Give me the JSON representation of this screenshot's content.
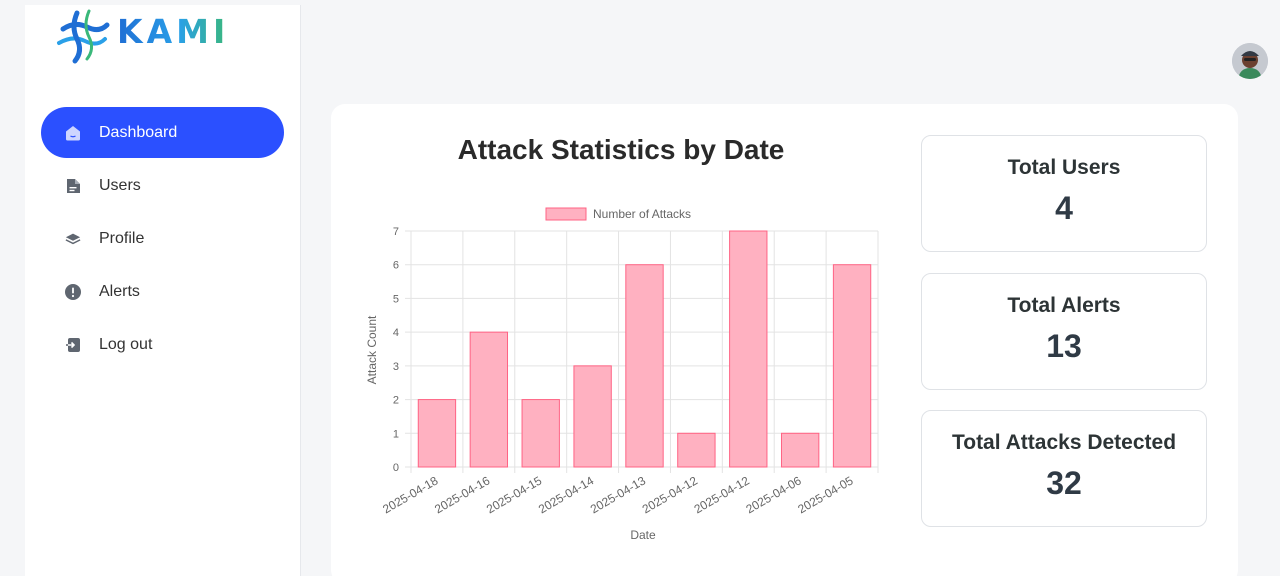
{
  "app": {
    "brand": "KAMI"
  },
  "colors": {
    "accent": "#2b50ff",
    "bar_fill": "#ffb1c1",
    "bar_stroke": "#ff6384"
  },
  "sidebar": {
    "items": [
      {
        "label": "Dashboard",
        "icon": "home-icon",
        "active": true
      },
      {
        "label": "Users",
        "icon": "document-icon"
      },
      {
        "label": "Profile",
        "icon": "layers-icon"
      },
      {
        "label": "Alerts",
        "icon": "alert-icon"
      },
      {
        "label": "Log out",
        "icon": "logout-icon"
      }
    ]
  },
  "main": {
    "chart_title": "Attack Statistics by Date"
  },
  "stats": [
    {
      "label": "Total Users",
      "value": "4"
    },
    {
      "label": "Total Alerts",
      "value": "13"
    },
    {
      "label": "Total Attacks Detected",
      "value": "32"
    }
  ],
  "chart_data": {
    "type": "bar",
    "title": "Attack Statistics by Date",
    "categories": [
      "2025-04-18",
      "2025-04-16",
      "2025-04-15",
      "2025-04-14",
      "2025-04-13",
      "2025-04-12",
      "2025-04-12",
      "2025-04-06",
      "2025-04-05"
    ],
    "series": [
      {
        "name": "Number of Attacks",
        "values": [
          2,
          4,
          2,
          3,
          6,
          1,
          7,
          1,
          6
        ]
      }
    ],
    "xlabel": "Date",
    "ylabel": "Attack Count",
    "ylim": [
      0,
      7
    ],
    "yticks": [
      0,
      1,
      2,
      3,
      4,
      5,
      6,
      7
    ],
    "grid": true,
    "legend": "top"
  }
}
